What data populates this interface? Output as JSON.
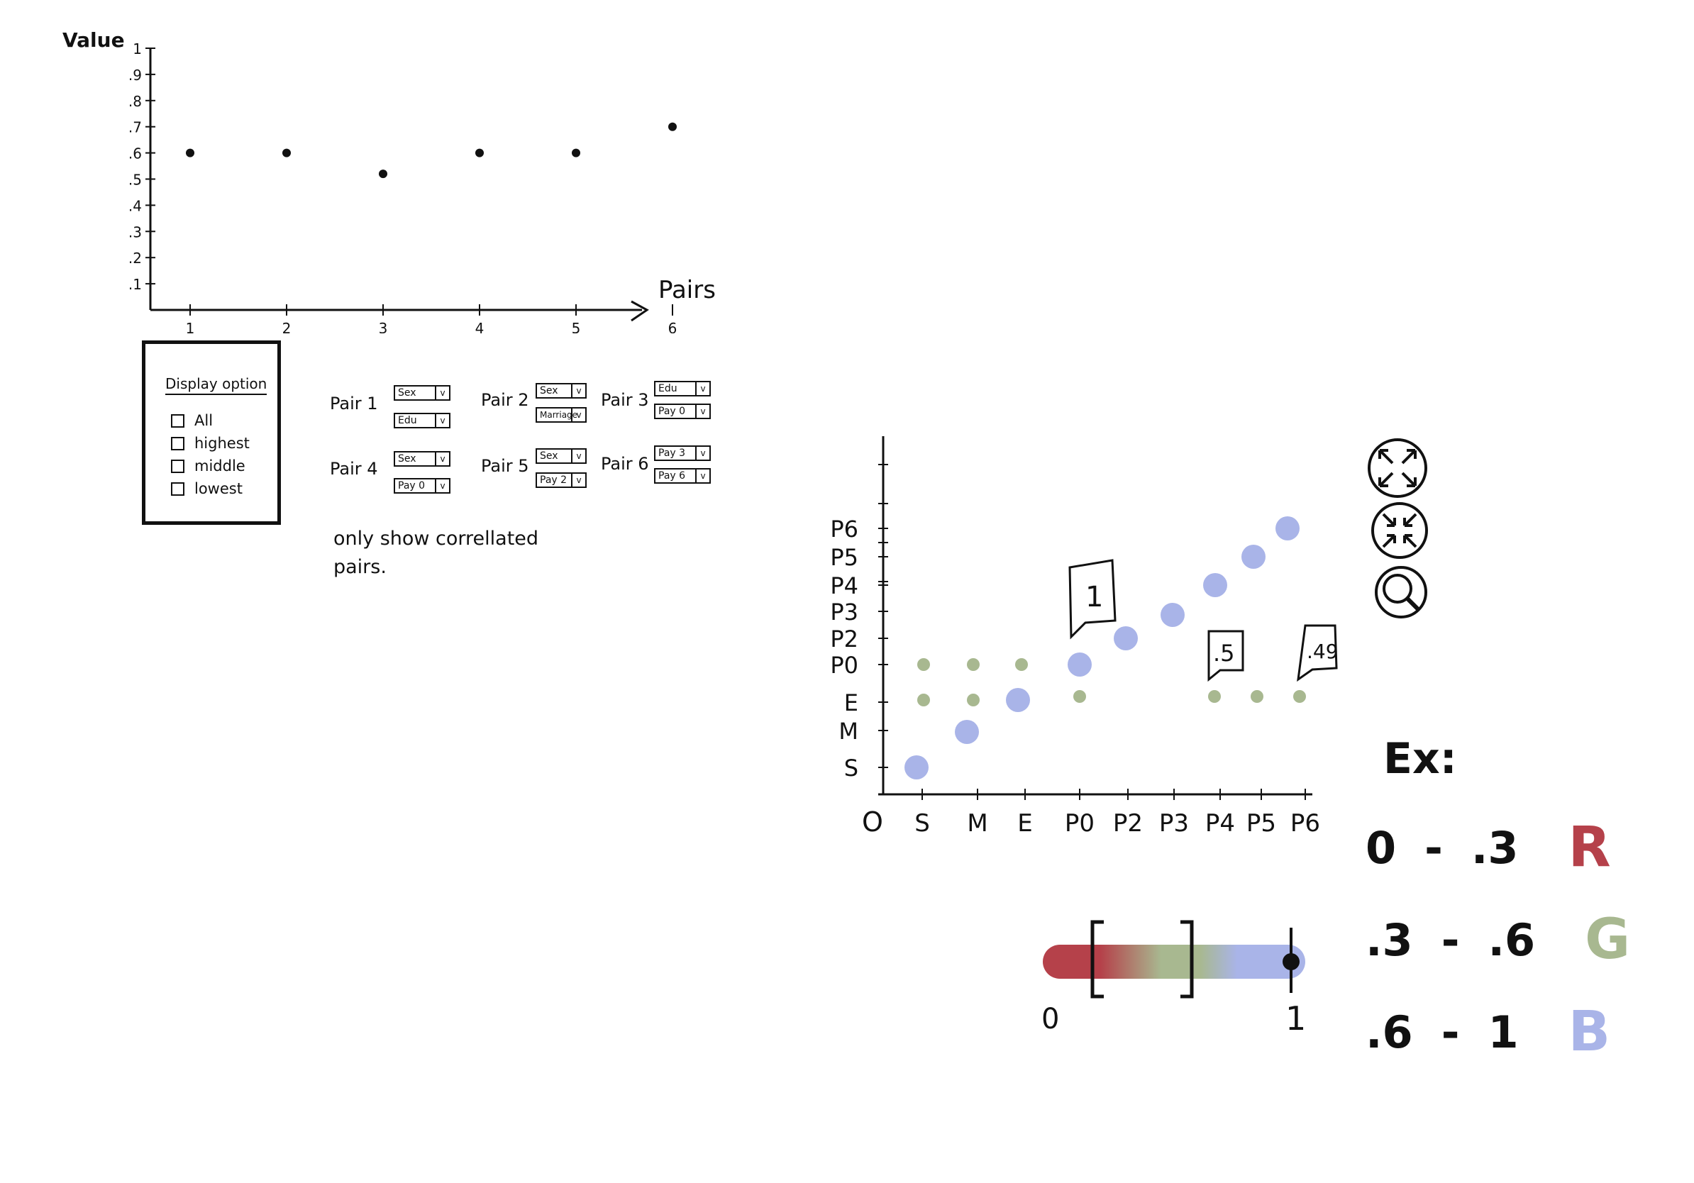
{
  "top_chart": {
    "y_axis_label": "Value",
    "x_axis_label": "Pairs",
    "y_ticks": [
      "1",
      ".9",
      ".8",
      ".7",
      ".6",
      ".5",
      ".4",
      ".3",
      ".2",
      ".1"
    ],
    "x_ticks": [
      "1",
      "2",
      "3",
      "4",
      "5",
      "6"
    ]
  },
  "chart_data": {
    "type": "scatter",
    "x": [
      1,
      2,
      3,
      4,
      5,
      6
    ],
    "y": [
      0.6,
      0.6,
      0.52,
      0.6,
      0.6,
      0.7
    ],
    "xlabel": "Pairs",
    "ylabel": "Value",
    "ylim": [
      0,
      1
    ]
  },
  "display_options": {
    "title": "Display option",
    "items": [
      "All",
      "highest",
      "middle",
      "lowest"
    ]
  },
  "pairs": [
    {
      "label": "Pair 1",
      "a": "Sex",
      "b": "Edu"
    },
    {
      "label": "Pair 2",
      "a": "Sex",
      "b": "Marriage"
    },
    {
      "label": "Pair 3",
      "a": "Edu",
      "b": "Pay 0"
    },
    {
      "label": "Pair 4",
      "a": "Sex",
      "b": "Pay 0"
    },
    {
      "label": "Pair 5",
      "a": "Sex",
      "b": "Pay 2"
    },
    {
      "label": "Pair 6",
      "a": "Pay 3",
      "b": "Pay 6"
    }
  ],
  "dropdown_arrow": "v",
  "note": "only show correllated pairs.",
  "matrix": {
    "origin": "O",
    "x_ticks": [
      "S",
      "M",
      "E",
      "P0",
      "P2",
      "P3",
      "P4",
      "P5",
      "P6"
    ],
    "y_ticks": [
      "S",
      "M",
      "E",
      "P0",
      "P2",
      "P3",
      "P4",
      "P5",
      "P6"
    ],
    "callouts": [
      "1",
      ".5",
      ".49"
    ]
  },
  "colors": {
    "red": "#b5414a",
    "green": "#a8b890",
    "blue": "#a9b4e8",
    "ink": "#111111"
  },
  "icons": [
    "expand-icon",
    "collapse-icon",
    "magnifier-icon"
  ],
  "slider": {
    "min_label": "0",
    "max_label": "1",
    "bracket_low": 0.2,
    "bracket_high": 0.6,
    "value": 1
  },
  "legend": {
    "title": "Ex:",
    "rows": [
      {
        "range_low": "0",
        "dash": "-",
        "range_high": ".3",
        "code": "R"
      },
      {
        "range_low": ".3",
        "dash": "-",
        "range_high": ".6",
        "code": "G"
      },
      {
        "range_low": ".6",
        "dash": "-",
        "range_high": "1",
        "code": "B"
      }
    ]
  }
}
